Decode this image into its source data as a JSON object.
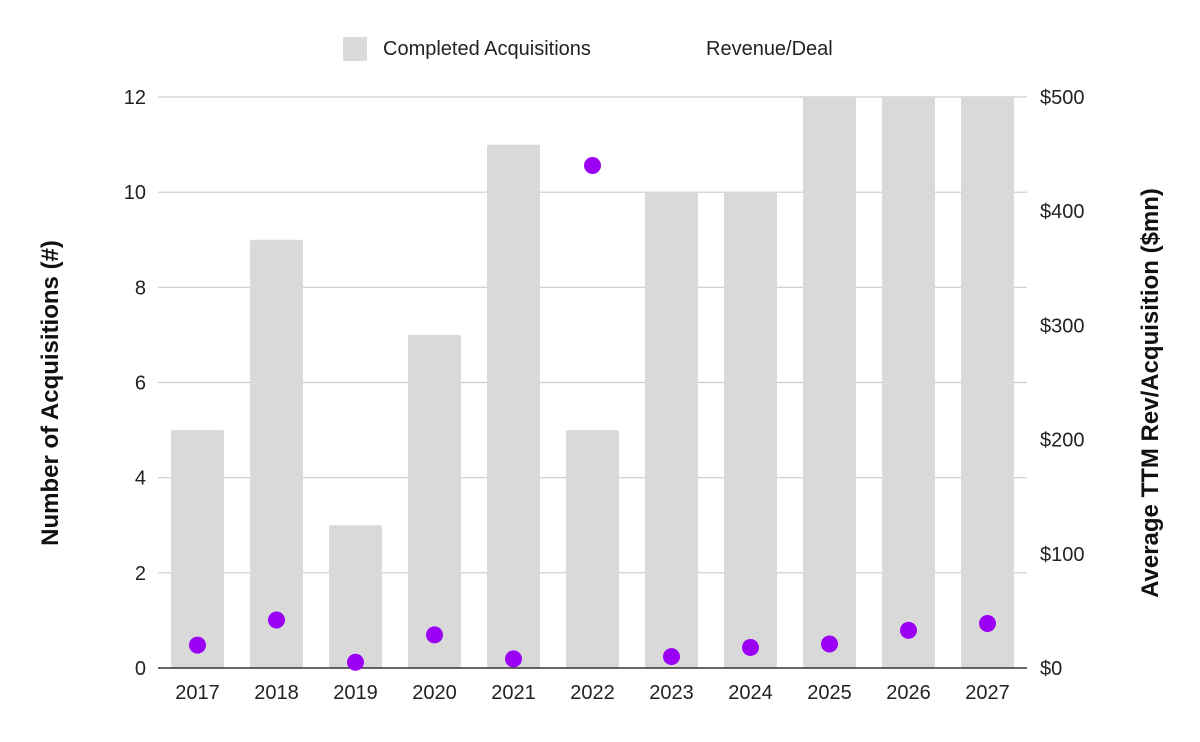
{
  "chart_data": {
    "type": "bar",
    "categories": [
      "2017",
      "2018",
      "2019",
      "2020",
      "2021",
      "2022",
      "2023",
      "2024",
      "2025",
      "2026",
      "2027"
    ],
    "series": [
      {
        "name": "Completed Acquisitions",
        "type": "bar",
        "axis": "left",
        "color": "#d9d9d9",
        "values": [
          5,
          9,
          3,
          7,
          11,
          5,
          10,
          10,
          12,
          12,
          12
        ]
      },
      {
        "name": "Revenue/Deal",
        "type": "scatter",
        "axis": "right",
        "color": "#9b00f5",
        "values": [
          20,
          42,
          5,
          29,
          8,
          440,
          10,
          18,
          21,
          33,
          39
        ]
      }
    ],
    "ylabel": "Number of Acquisitions (#)",
    "ylim": [
      0,
      12
    ],
    "yticks": [
      "0",
      "2",
      "4",
      "6",
      "8",
      "10",
      "12"
    ],
    "y2label": "Average TTM Rev/Acquisition ($mn)",
    "y2lim": [
      0,
      500
    ],
    "y2ticks": [
      "$0",
      "$100",
      "$200",
      "$300",
      "$400",
      "$500"
    ],
    "grid": true,
    "legend_position": "top-center"
  }
}
